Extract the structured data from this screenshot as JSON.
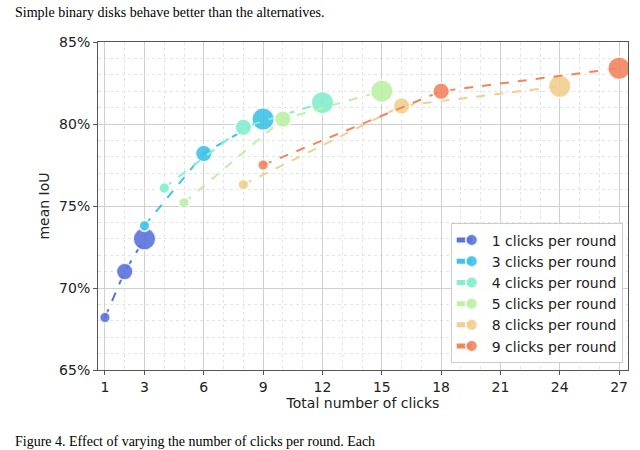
{
  "chart_data": {
    "type": "line",
    "x_label": "Total number of clicks",
    "y_label": "mean IoU",
    "annotations": [
      {
        "text": "Simple binary disks behave better than the alternatives.",
        "position": "top"
      },
      {
        "text": "Figure 4. Effect of varying the number of clicks per round. Each",
        "position": "bottom"
      }
    ],
    "series": [
      {
        "name": "1 clicks per round",
        "color": "#5a72dc",
        "x": [
          1,
          2,
          3
        ],
        "values": [
          68.2,
          71.0,
          73.0
        ]
      },
      {
        "name": "3 clicks per round",
        "color": "#3fc3e6",
        "x": [
          3,
          6,
          9
        ],
        "values": [
          73.8,
          78.2,
          80.3
        ]
      },
      {
        "name": "4 clicks per round",
        "color": "#84eecf",
        "x": [
          4,
          8,
          12
        ],
        "values": [
          76.1,
          79.8,
          81.3
        ]
      },
      {
        "name": "5 clicks per round",
        "color": "#bdf1a6",
        "x": [
          5,
          10,
          15
        ],
        "values": [
          75.2,
          80.3,
          82.0
        ]
      },
      {
        "name": "8 clicks per round",
        "color": "#f0d08e",
        "x": [
          8,
          16,
          24
        ],
        "values": [
          76.3,
          81.1,
          82.3
        ]
      },
      {
        "name": "9 clicks per round",
        "color": "#f2845e",
        "x": [
          9,
          18,
          27
        ],
        "values": [
          77.5,
          82.0,
          83.4
        ]
      }
    ],
    "xlim": [
      0.65,
      27.45
    ],
    "xticks": [
      1,
      3,
      6,
      9,
      12,
      15,
      18,
      21,
      24,
      27
    ],
    "ylim": [
      65,
      85
    ],
    "yticks": [
      {
        "value": 65,
        "label": "65%"
      },
      {
        "value": 70,
        "label": "70%"
      },
      {
        "value": 75,
        "label": "75%"
      },
      {
        "value": 80,
        "label": "80%"
      },
      {
        "value": 85,
        "label": "85%"
      }
    ],
    "grid": true,
    "legend": "lower right",
    "marker": "circle",
    "line_style": "dashed"
  }
}
